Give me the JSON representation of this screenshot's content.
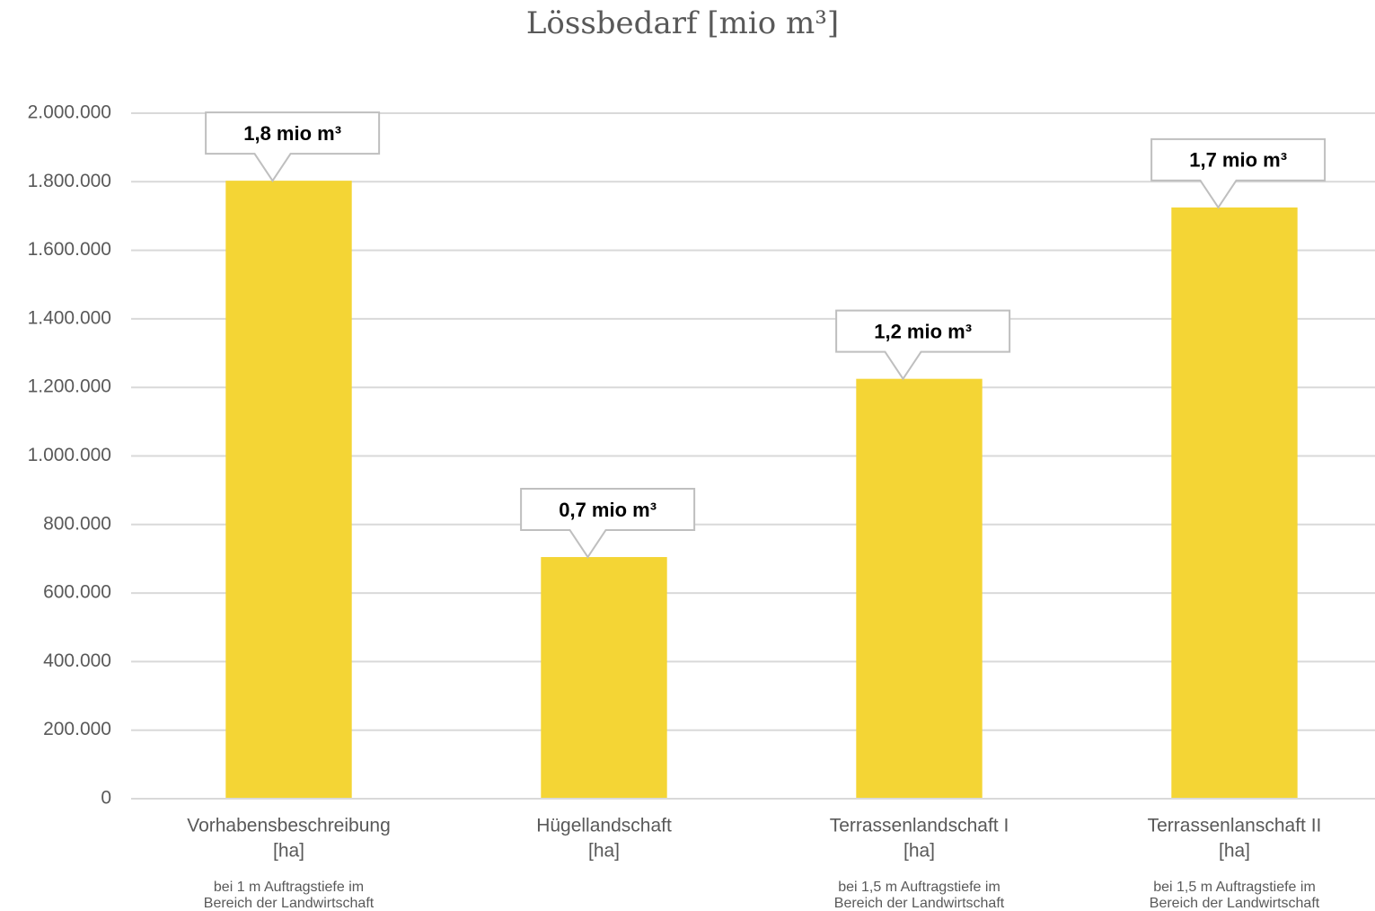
{
  "chart_data": {
    "type": "bar",
    "title": "Lössbedarf [mio m³]",
    "categories": [
      "Vorhabensbeschreibung",
      "Hügellandschaft",
      "Terrassenlandschaft I",
      "Terrassenlanschaft II"
    ],
    "category_units": [
      "[ha]",
      "[ha]",
      "[ha]",
      "[ha]"
    ],
    "category_notes": [
      [
        "bei 1 m Auftragstiefe im",
        "Bereich der Landwirtschaft"
      ],
      null,
      [
        "bei 1,5 m Auftragstiefe im",
        "Bereich der Landwirtschaft"
      ],
      [
        "bei 1,5 m Auftragstiefe im",
        "Bereich der Landwirtschaft"
      ]
    ],
    "values": [
      1803000,
      705000,
      1225000,
      1725000
    ],
    "value_labels": [
      "1,8 mio m³",
      "0,7 mio m³",
      "1,2 mio m³",
      "1,7 mio m³"
    ],
    "color": "#f4d535",
    "ylim": [
      0,
      2000000
    ],
    "yticks": [
      0,
      {
        "value": 200000,
        "label": "200.000"
      },
      {
        "value": 400000,
        "label": "400.000"
      },
      {
        "value": 600000,
        "label": "600.000"
      },
      {
        "value": 800000,
        "label": "800.000"
      },
      {
        "value": 1000000,
        "label": "1.000.000"
      },
      {
        "value": 1200000,
        "label": "1.200.000"
      },
      {
        "value": 1400000,
        "label": "1.400.000"
      },
      {
        "value": 1600000,
        "label": "1.600.000"
      },
      {
        "value": 1800000,
        "label": "1.800.000"
      },
      {
        "value": 2000000,
        "label": "2.000.000"
      }
    ],
    "grid": true
  }
}
